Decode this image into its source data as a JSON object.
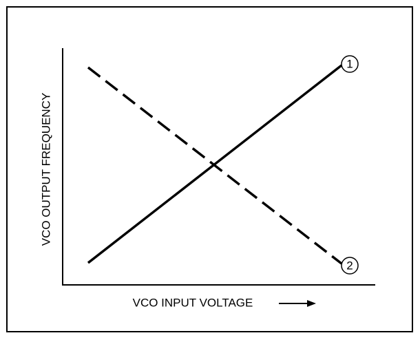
{
  "diagram": {
    "y_axis_label": "VCO OUTPUT FREQUENCY",
    "x_axis_label": "VCO INPUT VOLTAGE",
    "lines": [
      {
        "label": "1",
        "style": "solid"
      },
      {
        "label": "2",
        "style": "dashed"
      }
    ]
  }
}
